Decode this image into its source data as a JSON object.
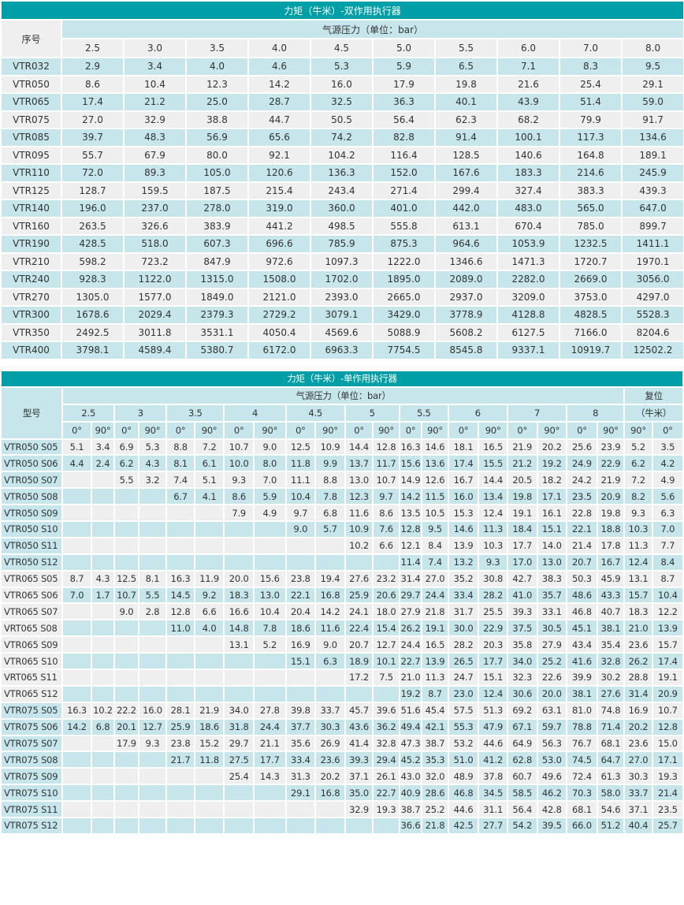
{
  "double_acting": {
    "title": "力矩（牛米）-双作用执行器",
    "model_header": "序号",
    "pressure_header": "气源压力（单位：bar）",
    "pressures": [
      "2.5",
      "3.0",
      "3.5",
      "4.0",
      "4.5",
      "5.0",
      "5.5",
      "6.0",
      "7.0",
      "8.0"
    ],
    "rows": [
      {
        "model": "VTR032",
        "values": [
          "2.9",
          "3.4",
          "4.0",
          "4.6",
          "5.3",
          "5.9",
          "6.5",
          "7.1",
          "8.3",
          "9.5"
        ]
      },
      {
        "model": "VTR050",
        "values": [
          "8.6",
          "10.4",
          "12.3",
          "14.2",
          "16.0",
          "17.9",
          "19.8",
          "21.6",
          "25.4",
          "29.1"
        ]
      },
      {
        "model": "VTR065",
        "values": [
          "17.4",
          "21.2",
          "25.0",
          "28.7",
          "32.5",
          "36.3",
          "40.1",
          "43.9",
          "51.4",
          "59.0"
        ]
      },
      {
        "model": "VTR075",
        "values": [
          "27.0",
          "32.9",
          "38.8",
          "44.7",
          "50.5",
          "56.4",
          "62.3",
          "68.2",
          "79.9",
          "91.7"
        ]
      },
      {
        "model": "VTR085",
        "values": [
          "39.7",
          "48.3",
          "56.9",
          "65.6",
          "74.2",
          "82.8",
          "91.4",
          "100.1",
          "117.3",
          "134.6"
        ]
      },
      {
        "model": "VTR095",
        "values": [
          "55.7",
          "67.9",
          "80.0",
          "92.1",
          "104.2",
          "116.4",
          "128.5",
          "140.6",
          "164.8",
          "189.1"
        ]
      },
      {
        "model": "VTR110",
        "values": [
          "72.0",
          "89.3",
          "105.0",
          "120.6",
          "136.3",
          "152.0",
          "167.6",
          "183.3",
          "214.6",
          "245.9"
        ]
      },
      {
        "model": "VTR125",
        "values": [
          "128.7",
          "159.5",
          "187.5",
          "215.4",
          "243.4",
          "271.4",
          "299.4",
          "327.4",
          "383.3",
          "439.3"
        ]
      },
      {
        "model": "VTR140",
        "values": [
          "196.0",
          "237.0",
          "278.0",
          "319.0",
          "360.0",
          "401.0",
          "442.0",
          "483.0",
          "565.0",
          "647.0"
        ]
      },
      {
        "model": "VTR160",
        "values": [
          "263.5",
          "326.6",
          "383.9",
          "441.2",
          "498.5",
          "555.8",
          "613.1",
          "670.4",
          "785.0",
          "899.7"
        ]
      },
      {
        "model": "VTR190",
        "values": [
          "428.5",
          "518.0",
          "607.3",
          "696.6",
          "785.9",
          "875.3",
          "964.6",
          "1053.9",
          "1232.5",
          "1411.1"
        ]
      },
      {
        "model": "VTR210",
        "values": [
          "598.2",
          "723.2",
          "847.9",
          "972.6",
          "1097.3",
          "1222.0",
          "1346.6",
          "1471.3",
          "1720.7",
          "1970.1"
        ]
      },
      {
        "model": "VTR240",
        "values": [
          "928.3",
          "1122.0",
          "1315.0",
          "1508.0",
          "1702.0",
          "1895.0",
          "2089.0",
          "2282.0",
          "2669.0",
          "3056.0"
        ]
      },
      {
        "model": "VTR270",
        "values": [
          "1305.0",
          "1577.0",
          "1849.0",
          "2121.0",
          "2393.0",
          "2665.0",
          "2937.0",
          "3209.0",
          "3753.0",
          "4297.0"
        ]
      },
      {
        "model": "VTR300",
        "values": [
          "1678.6",
          "2029.4",
          "2379.3",
          "2729.2",
          "3079.1",
          "3429.0",
          "3778.9",
          "4128.8",
          "4828.5",
          "5528.3"
        ]
      },
      {
        "model": "VTR350",
        "values": [
          "2492.5",
          "3011.8",
          "3531.1",
          "4050.4",
          "4569.6",
          "5088.9",
          "5608.2",
          "6127.5",
          "7166.0",
          "8204.6"
        ]
      },
      {
        "model": "VTR400",
        "values": [
          "3798.1",
          "4589.4",
          "5380.7",
          "6172.0",
          "6963.3",
          "7754.5",
          "8545.8",
          "9337.1",
          "10919.7",
          "12502.2"
        ]
      }
    ]
  },
  "single_acting": {
    "title": "力矩（牛米）-单作用执行器",
    "model_header": "型号",
    "pressure_header": "气源压力（单位：bar）",
    "reset_header": "复位",
    "reset_unit": "（牛米）",
    "pressures": [
      "2.5",
      "3",
      "3.5",
      "4",
      "4.5",
      "5",
      "5.5",
      "6",
      "7",
      "8"
    ],
    "angles": [
      "0°",
      "90°"
    ],
    "reset_angles": [
      "90°",
      "0°"
    ],
    "rows": [
      {
        "model": "VTR050 S05",
        "values": [
          "5.1",
          "3.4",
          "6.9",
          "5.3",
          "8.8",
          "7.2",
          "10.7",
          "9.0",
          "12.5",
          "10.9",
          "14.4",
          "12.8",
          "16.3",
          "14.6",
          "18.1",
          "16.5",
          "21.9",
          "20.2",
          "25.6",
          "23.9",
          "5.2",
          "3.5"
        ]
      },
      {
        "model": "VTR050 S06",
        "values": [
          "4.4",
          "2.4",
          "6.2",
          "4.3",
          "8.1",
          "6.1",
          "10.0",
          "8.0",
          "11.8",
          "9.9",
          "13.7",
          "11.7",
          "15.6",
          "13.6",
          "17.4",
          "15.5",
          "21.2",
          "19.2",
          "24.9",
          "22.9",
          "6.2",
          "4.2"
        ]
      },
      {
        "model": "VTR050 S07",
        "values": [
          "",
          "",
          "5.5",
          "3.2",
          "7.4",
          "5.1",
          "9.3",
          "7.0",
          "11.1",
          "8.8",
          "13.0",
          "10.7",
          "14.9",
          "12.6",
          "16.7",
          "14.4",
          "20.5",
          "18.2",
          "24.2",
          "21.9",
          "7.2",
          "4.9"
        ]
      },
      {
        "model": "VTR050 S08",
        "values": [
          "",
          "",
          "",
          "",
          "6.7",
          "4.1",
          "8.6",
          "5.9",
          "10.4",
          "7.8",
          "12.3",
          "9.7",
          "14.2",
          "11.5",
          "16.0",
          "13.4",
          "19.8",
          "17.1",
          "23.5",
          "20.9",
          "8.2",
          "5.6"
        ]
      },
      {
        "model": "VTR050 S09",
        "values": [
          "",
          "",
          "",
          "",
          "",
          "",
          "7.9",
          "4.9",
          "9.7",
          "6.8",
          "11.6",
          "8.6",
          "13.5",
          "10.5",
          "15.3",
          "12.4",
          "19.1",
          "16.1",
          "22.8",
          "19.8",
          "9.3",
          "6.3"
        ]
      },
      {
        "model": "VTR050 S10",
        "values": [
          "",
          "",
          "",
          "",
          "",
          "",
          "",
          "",
          "9.0",
          "5.7",
          "10.9",
          "7.6",
          "12.8",
          "9.5",
          "14.6",
          "11.3",
          "18.4",
          "15.1",
          "22.1",
          "18.8",
          "10.3",
          "7.0"
        ]
      },
      {
        "model": "VTR050 S11",
        "values": [
          "",
          "",
          "",
          "",
          "",
          "",
          "",
          "",
          "",
          "",
          "10.2",
          "6.6",
          "12.1",
          "8.4",
          "13.9",
          "10.3",
          "17.7",
          "14.0",
          "21.4",
          "17.8",
          "11.3",
          "7.7"
        ]
      },
      {
        "model": "VTR050 S12",
        "values": [
          "",
          "",
          "",
          "",
          "",
          "",
          "",
          "",
          "",
          "",
          "",
          "",
          "11.4",
          "7.4",
          "13.2",
          "9.3",
          "17.0",
          "13.0",
          "20.7",
          "16.7",
          "12.4",
          "8.4"
        ]
      },
      {
        "model": "VTR065 S05",
        "values": [
          "8.7",
          "4.3",
          "12.5",
          "8.1",
          "16.3",
          "11.9",
          "20.0",
          "15.6",
          "23.8",
          "19.4",
          "27.6",
          "23.2",
          "31.4",
          "27.0",
          "35.2",
          "30.8",
          "42.7",
          "38.3",
          "50.3",
          "45.9",
          "13.1",
          "8.7"
        ]
      },
      {
        "model": "VTR065 S06",
        "values": [
          "7.0",
          "1.7",
          "10.7",
          "5.5",
          "14.5",
          "9.2",
          "18.3",
          "13.0",
          "22.1",
          "16.8",
          "25.9",
          "20.6",
          "29.7",
          "24.4",
          "33.4",
          "28.2",
          "41.0",
          "35.7",
          "48.6",
          "43.3",
          "15.7",
          "10.4"
        ]
      },
      {
        "model": "VTR065 S07",
        "values": [
          "",
          "",
          "9.0",
          "2.8",
          "12.8",
          "6.6",
          "16.6",
          "10.4",
          "20.4",
          "14.2",
          "24.1",
          "18.0",
          "27.9",
          "21.8",
          "31.7",
          "25.5",
          "39.3",
          "33.1",
          "46.8",
          "40.7",
          "18.3",
          "12.2"
        ]
      },
      {
        "model": "VRT065 S08",
        "values": [
          "",
          "",
          "",
          "",
          "11.0",
          "4.0",
          "14.8",
          "7.8",
          "18.6",
          "11.6",
          "22.4",
          "15.4",
          "26.2",
          "19.1",
          "30.0",
          "22.9",
          "37.5",
          "30.5",
          "45.1",
          "38.1",
          "21.0",
          "13.9"
        ]
      },
      {
        "model": "VTR065 S09",
        "values": [
          "",
          "",
          "",
          "",
          "",
          "",
          "13.1",
          "5.2",
          "16.9",
          "9.0",
          "20.7",
          "12.7",
          "24.4",
          "16.5",
          "28.2",
          "20.3",
          "35.8",
          "27.9",
          "43.4",
          "35.4",
          "23.6",
          "15.7"
        ]
      },
      {
        "model": "VTR065 S10",
        "values": [
          "",
          "",
          "",
          "",
          "",
          "",
          "",
          "",
          "15.1",
          "6.3",
          "18.9",
          "10.1",
          "22.7",
          "13.9",
          "26.5",
          "17.7",
          "34.0",
          "25.2",
          "41.6",
          "32.8",
          "26.2",
          "17.4"
        ]
      },
      {
        "model": "VRT065 S11",
        "values": [
          "",
          "",
          "",
          "",
          "",
          "",
          "",
          "",
          "",
          "",
          "17.2",
          "7.5",
          "21.0",
          "11.3",
          "24.7",
          "15.1",
          "32.3",
          "22.6",
          "39.9",
          "30.2",
          "28.8",
          "19.1"
        ]
      },
      {
        "model": "VTR065 S12",
        "values": [
          "",
          "",
          "",
          "",
          "",
          "",
          "",
          "",
          "",
          "",
          "",
          "",
          "19.2",
          "8.7",
          "23.0",
          "12.4",
          "30.6",
          "20.0",
          "38.1",
          "27.6",
          "31.4",
          "20.9"
        ]
      },
      {
        "model": "VTR075 S05",
        "values": [
          "16.3",
          "10.2",
          "22.2",
          "16.0",
          "28.1",
          "21.9",
          "34.0",
          "27.8",
          "39.8",
          "33.7",
          "45.7",
          "39.6",
          "51.6",
          "45.4",
          "57.5",
          "51.3",
          "69.2",
          "63.1",
          "81.0",
          "74.8",
          "16.9",
          "10.7"
        ]
      },
      {
        "model": "VTR075 S06",
        "values": [
          "14.2",
          "6.8",
          "20.1",
          "12.7",
          "25.9",
          "18.6",
          "31.8",
          "24.4",
          "37.7",
          "30.3",
          "43.6",
          "36.2",
          "49.4",
          "42.1",
          "55.3",
          "47.9",
          "67.1",
          "59.7",
          "78.8",
          "71.4",
          "20.2",
          "12.8"
        ]
      },
      {
        "model": "VTR075 S07",
        "values": [
          "",
          "",
          "17.9",
          "9.3",
          "23.8",
          "15.2",
          "29.7",
          "21.1",
          "35.6",
          "26.9",
          "41.4",
          "32.8",
          "47.3",
          "38.7",
          "53.2",
          "44.6",
          "64.9",
          "56.3",
          "76.7",
          "68.1",
          "23.6",
          "15.0"
        ]
      },
      {
        "model": "VTR075 S08",
        "values": [
          "",
          "",
          "",
          "",
          "21.7",
          "11.8",
          "27.5",
          "17.7",
          "33.4",
          "23.6",
          "39.3",
          "29.4",
          "45.2",
          "35.3",
          "51.0",
          "41.2",
          "62.8",
          "53.0",
          "74.5",
          "64.7",
          "27.0",
          "17.1"
        ]
      },
      {
        "model": "VTR075 S09",
        "values": [
          "",
          "",
          "",
          "",
          "",
          "",
          "25.4",
          "14.3",
          "31.3",
          "20.2",
          "37.1",
          "26.1",
          "43.0",
          "32.0",
          "48.9",
          "37.8",
          "60.7",
          "49.6",
          "72.4",
          "61.3",
          "30.3",
          "19.3"
        ]
      },
      {
        "model": "VTR075 S10",
        "values": [
          "",
          "",
          "",
          "",
          "",
          "",
          "",
          "",
          "29.1",
          "16.8",
          "35.0",
          "22.7",
          "40.9",
          "28.6",
          "46.8",
          "34.5",
          "58.5",
          "46.2",
          "70.3",
          "58.0",
          "33.7",
          "21.4"
        ]
      },
      {
        "model": "VTR075 S11",
        "values": [
          "",
          "",
          "",
          "",
          "",
          "",
          "",
          "",
          "",
          "",
          "32.9",
          "19.3",
          "38.7",
          "25.2",
          "44.6",
          "31.1",
          "56.4",
          "42.8",
          "68.1",
          "54.6",
          "37.1",
          "23.5"
        ]
      },
      {
        "model": "VTR075 S12",
        "values": [
          "",
          "",
          "",
          "",
          "",
          "",
          "",
          "",
          "",
          "",
          "",
          "",
          "36.6",
          "21.8",
          "42.5",
          "27.7",
          "54.2",
          "39.5",
          "66.0",
          "51.2",
          "40.4",
          "25.7"
        ]
      }
    ]
  },
  "colors": {
    "header": "#009ea6",
    "stripe_blue": "#c6e6ec",
    "stripe_gray": "#efefef",
    "text": "#333333"
  }
}
